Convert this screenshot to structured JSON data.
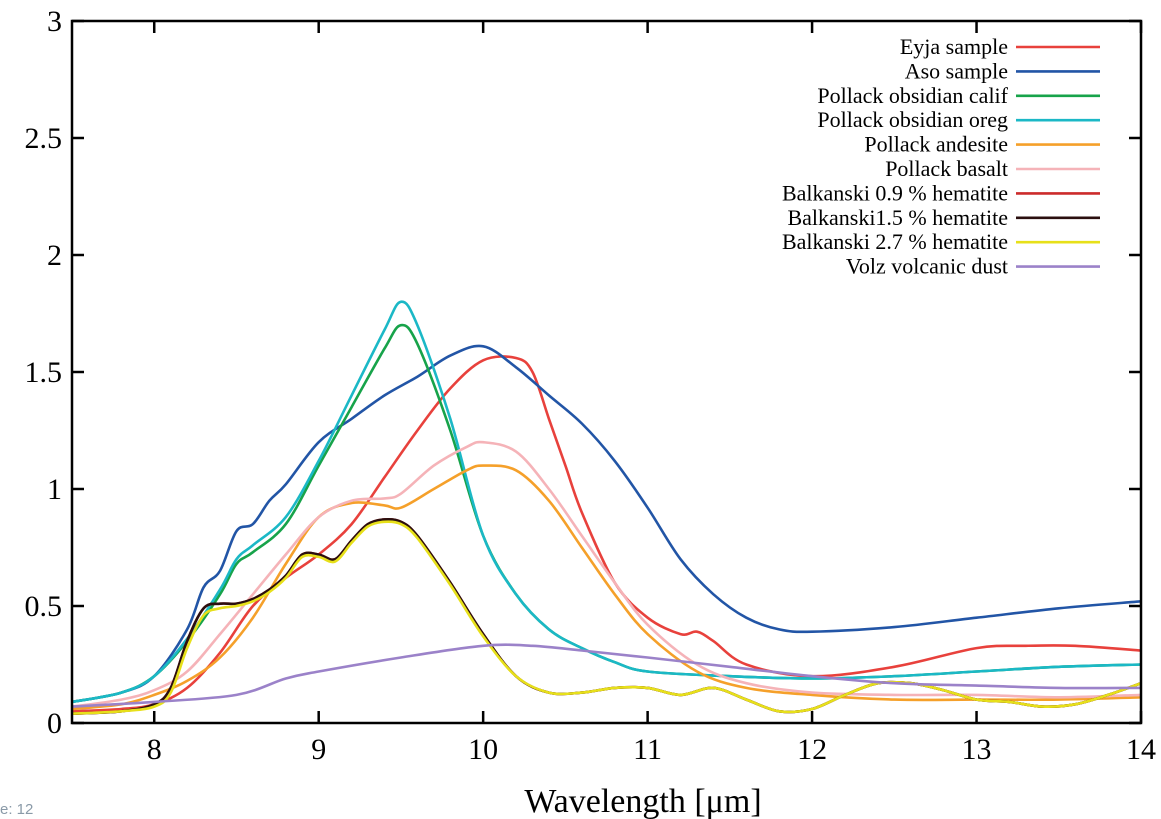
{
  "corner_note": "e: 12",
  "chart_data": {
    "type": "line",
    "title": "",
    "xlabel": "Wavelength [μm]",
    "ylabel": "",
    "xlim": [
      7.5,
      14
    ],
    "ylim": [
      0,
      3
    ],
    "xticks": [
      "8",
      "9",
      "10",
      "11",
      "12",
      "13",
      "14"
    ],
    "yticks": [
      "0",
      "0.5",
      "1",
      "1.5",
      "2",
      "2.5",
      "3"
    ],
    "legend_position": "top-right",
    "grid": false,
    "series": [
      {
        "name": "Eyja sample",
        "color": "#e8413c",
        "x": [
          7.5,
          7.8,
          8.0,
          8.2,
          8.4,
          8.6,
          8.8,
          9.0,
          9.2,
          9.4,
          9.6,
          9.8,
          10.0,
          10.2,
          10.3,
          10.4,
          10.5,
          10.6,
          10.8,
          11.0,
          11.2,
          11.3,
          11.4,
          11.6,
          12.0,
          12.5,
          13.0,
          13.3,
          13.6,
          14.0
        ],
        "y": [
          0.05,
          0.06,
          0.08,
          0.15,
          0.3,
          0.5,
          0.62,
          0.72,
          0.85,
          1.05,
          1.25,
          1.43,
          1.55,
          1.56,
          1.5,
          1.3,
          1.1,
          0.9,
          0.6,
          0.45,
          0.38,
          0.39,
          0.35,
          0.25,
          0.2,
          0.24,
          0.32,
          0.33,
          0.33,
          0.31
        ]
      },
      {
        "name": "Aso sample",
        "color": "#2255a6",
        "x": [
          7.5,
          7.8,
          8.0,
          8.2,
          8.3,
          8.4,
          8.5,
          8.6,
          8.7,
          8.8,
          9.0,
          9.2,
          9.4,
          9.6,
          9.8,
          10.0,
          10.2,
          10.4,
          10.6,
          10.8,
          11.0,
          11.2,
          11.4,
          11.6,
          11.8,
          12.0,
          12.5,
          13.0,
          13.5,
          14.0
        ],
        "y": [
          0.09,
          0.13,
          0.2,
          0.4,
          0.58,
          0.65,
          0.82,
          0.85,
          0.95,
          1.02,
          1.2,
          1.3,
          1.4,
          1.48,
          1.57,
          1.61,
          1.52,
          1.4,
          1.28,
          1.12,
          0.92,
          0.7,
          0.55,
          0.45,
          0.4,
          0.39,
          0.41,
          0.45,
          0.49,
          0.52
        ]
      },
      {
        "name": "Pollack obsidian calif",
        "color": "#17a34a",
        "x": [
          7.5,
          7.8,
          8.0,
          8.2,
          8.4,
          8.5,
          8.6,
          8.8,
          9.0,
          9.2,
          9.4,
          9.5,
          9.6,
          9.8,
          10.0,
          10.2,
          10.4,
          10.6,
          10.8,
          11.0,
          11.5,
          12.0,
          12.5,
          13.0,
          13.5,
          14.0
        ],
        "y": [
          0.09,
          0.13,
          0.2,
          0.35,
          0.55,
          0.68,
          0.73,
          0.85,
          1.1,
          1.35,
          1.6,
          1.7,
          1.62,
          1.25,
          0.8,
          0.55,
          0.4,
          0.32,
          0.26,
          0.22,
          0.2,
          0.19,
          0.2,
          0.22,
          0.24,
          0.25
        ]
      },
      {
        "name": "Pollack obsidian oreg",
        "color": "#1bb8c6",
        "x": [
          7.5,
          7.8,
          8.0,
          8.2,
          8.4,
          8.5,
          8.6,
          8.8,
          9.0,
          9.2,
          9.4,
          9.5,
          9.6,
          9.8,
          10.0,
          10.2,
          10.4,
          10.6,
          10.8,
          11.0,
          11.5,
          12.0,
          12.5,
          13.0,
          13.5,
          14.0
        ],
        "y": [
          0.09,
          0.13,
          0.2,
          0.36,
          0.57,
          0.7,
          0.76,
          0.88,
          1.12,
          1.4,
          1.68,
          1.8,
          1.7,
          1.3,
          0.8,
          0.55,
          0.4,
          0.32,
          0.26,
          0.22,
          0.2,
          0.19,
          0.2,
          0.22,
          0.24,
          0.25
        ]
      },
      {
        "name": "Pollack andesite",
        "color": "#f5a02a",
        "x": [
          7.5,
          7.8,
          8.0,
          8.2,
          8.4,
          8.6,
          8.8,
          9.0,
          9.2,
          9.4,
          9.5,
          9.7,
          9.9,
          10.0,
          10.2,
          10.4,
          10.6,
          10.8,
          11.0,
          11.3,
          11.6,
          12.0,
          12.5,
          13.0,
          13.5,
          14.0
        ],
        "y": [
          0.06,
          0.08,
          0.12,
          0.18,
          0.28,
          0.45,
          0.68,
          0.88,
          0.94,
          0.93,
          0.92,
          1.0,
          1.08,
          1.1,
          1.08,
          0.95,
          0.75,
          0.55,
          0.38,
          0.22,
          0.15,
          0.12,
          0.1,
          0.1,
          0.1,
          0.11
        ]
      },
      {
        "name": "Pollack basalt",
        "color": "#f5b3b8",
        "x": [
          7.5,
          7.8,
          8.0,
          8.2,
          8.4,
          8.6,
          8.8,
          9.0,
          9.2,
          9.4,
          9.5,
          9.7,
          9.9,
          10.0,
          10.2,
          10.4,
          10.6,
          10.8,
          11.0,
          11.3,
          11.6,
          12.0,
          12.5,
          13.0,
          13.5,
          14.0
        ],
        "y": [
          0.07,
          0.1,
          0.14,
          0.22,
          0.38,
          0.55,
          0.72,
          0.88,
          0.95,
          0.96,
          0.98,
          1.1,
          1.18,
          1.2,
          1.16,
          1.0,
          0.8,
          0.6,
          0.42,
          0.25,
          0.17,
          0.13,
          0.12,
          0.12,
          0.11,
          0.12
        ]
      },
      {
        "name": "Balkanski 0.9 % hematite",
        "color": "#cc2b2b",
        "x": [
          7.5,
          7.8,
          8.0,
          8.1,
          8.2,
          8.3,
          8.4,
          8.5,
          8.6,
          8.7,
          8.8,
          8.9,
          9.0,
          9.1,
          9.2,
          9.3,
          9.4,
          9.5,
          9.6,
          9.8,
          10.0,
          10.2,
          10.4,
          10.6,
          10.8,
          11.0,
          11.2,
          11.4,
          11.6,
          11.8,
          12.0,
          12.2,
          12.4,
          12.6,
          12.8,
          13.0,
          13.2,
          13.4,
          13.6,
          13.8,
          14.0
        ],
        "y": [
          0.04,
          0.05,
          0.08,
          0.15,
          0.35,
          0.49,
          0.51,
          0.51,
          0.53,
          0.57,
          0.63,
          0.72,
          0.72,
          0.7,
          0.78,
          0.85,
          0.87,
          0.86,
          0.8,
          0.6,
          0.38,
          0.2,
          0.13,
          0.13,
          0.15,
          0.15,
          0.12,
          0.15,
          0.1,
          0.05,
          0.06,
          0.12,
          0.17,
          0.17,
          0.14,
          0.1,
          0.09,
          0.07,
          0.08,
          0.12,
          0.17
        ]
      },
      {
        "name": "Balkanski1.5 % hematite",
        "color": "#2a0f0f",
        "x": [
          7.5,
          7.8,
          8.0,
          8.1,
          8.2,
          8.3,
          8.4,
          8.5,
          8.6,
          8.7,
          8.8,
          8.9,
          9.0,
          9.1,
          9.2,
          9.3,
          9.4,
          9.5,
          9.6,
          9.8,
          10.0,
          10.2,
          10.4,
          10.6,
          10.8,
          11.0,
          11.2,
          11.4,
          11.6,
          11.8,
          12.0,
          12.2,
          12.4,
          12.6,
          12.8,
          13.0,
          13.2,
          13.4,
          13.6,
          13.8,
          14.0
        ],
        "y": [
          0.04,
          0.05,
          0.08,
          0.15,
          0.35,
          0.49,
          0.51,
          0.51,
          0.53,
          0.57,
          0.63,
          0.72,
          0.72,
          0.7,
          0.78,
          0.85,
          0.87,
          0.86,
          0.8,
          0.6,
          0.38,
          0.2,
          0.13,
          0.13,
          0.15,
          0.15,
          0.12,
          0.15,
          0.1,
          0.05,
          0.06,
          0.12,
          0.17,
          0.17,
          0.14,
          0.1,
          0.09,
          0.07,
          0.08,
          0.12,
          0.17
        ]
      },
      {
        "name": "Balkanski 2.7 % hematite",
        "color": "#e7e01a",
        "x": [
          7.5,
          7.8,
          8.0,
          8.1,
          8.2,
          8.3,
          8.4,
          8.5,
          8.6,
          8.7,
          8.8,
          8.9,
          9.0,
          9.1,
          9.2,
          9.3,
          9.4,
          9.5,
          9.6,
          9.8,
          10.0,
          10.2,
          10.4,
          10.6,
          10.8,
          11.0,
          11.2,
          11.4,
          11.6,
          11.8,
          12.0,
          12.2,
          12.4,
          12.6,
          12.8,
          13.0,
          13.2,
          13.4,
          13.6,
          13.8,
          14.0
        ],
        "y": [
          0.04,
          0.05,
          0.07,
          0.13,
          0.32,
          0.46,
          0.49,
          0.5,
          0.52,
          0.56,
          0.62,
          0.71,
          0.71,
          0.69,
          0.77,
          0.84,
          0.86,
          0.85,
          0.79,
          0.59,
          0.37,
          0.2,
          0.13,
          0.13,
          0.15,
          0.15,
          0.12,
          0.15,
          0.1,
          0.05,
          0.06,
          0.12,
          0.17,
          0.17,
          0.14,
          0.1,
          0.09,
          0.07,
          0.08,
          0.12,
          0.17
        ]
      },
      {
        "name": "Volz volcanic dust",
        "color": "#9b82c9",
        "x": [
          7.5,
          8.0,
          8.5,
          8.8,
          9.0,
          9.5,
          10.0,
          10.3,
          10.6,
          11.0,
          11.5,
          12.0,
          12.5,
          13.0,
          13.5,
          14.0
        ],
        "y": [
          0.07,
          0.09,
          0.12,
          0.19,
          0.22,
          0.28,
          0.33,
          0.33,
          0.31,
          0.28,
          0.24,
          0.2,
          0.17,
          0.16,
          0.15,
          0.15
        ]
      }
    ]
  }
}
